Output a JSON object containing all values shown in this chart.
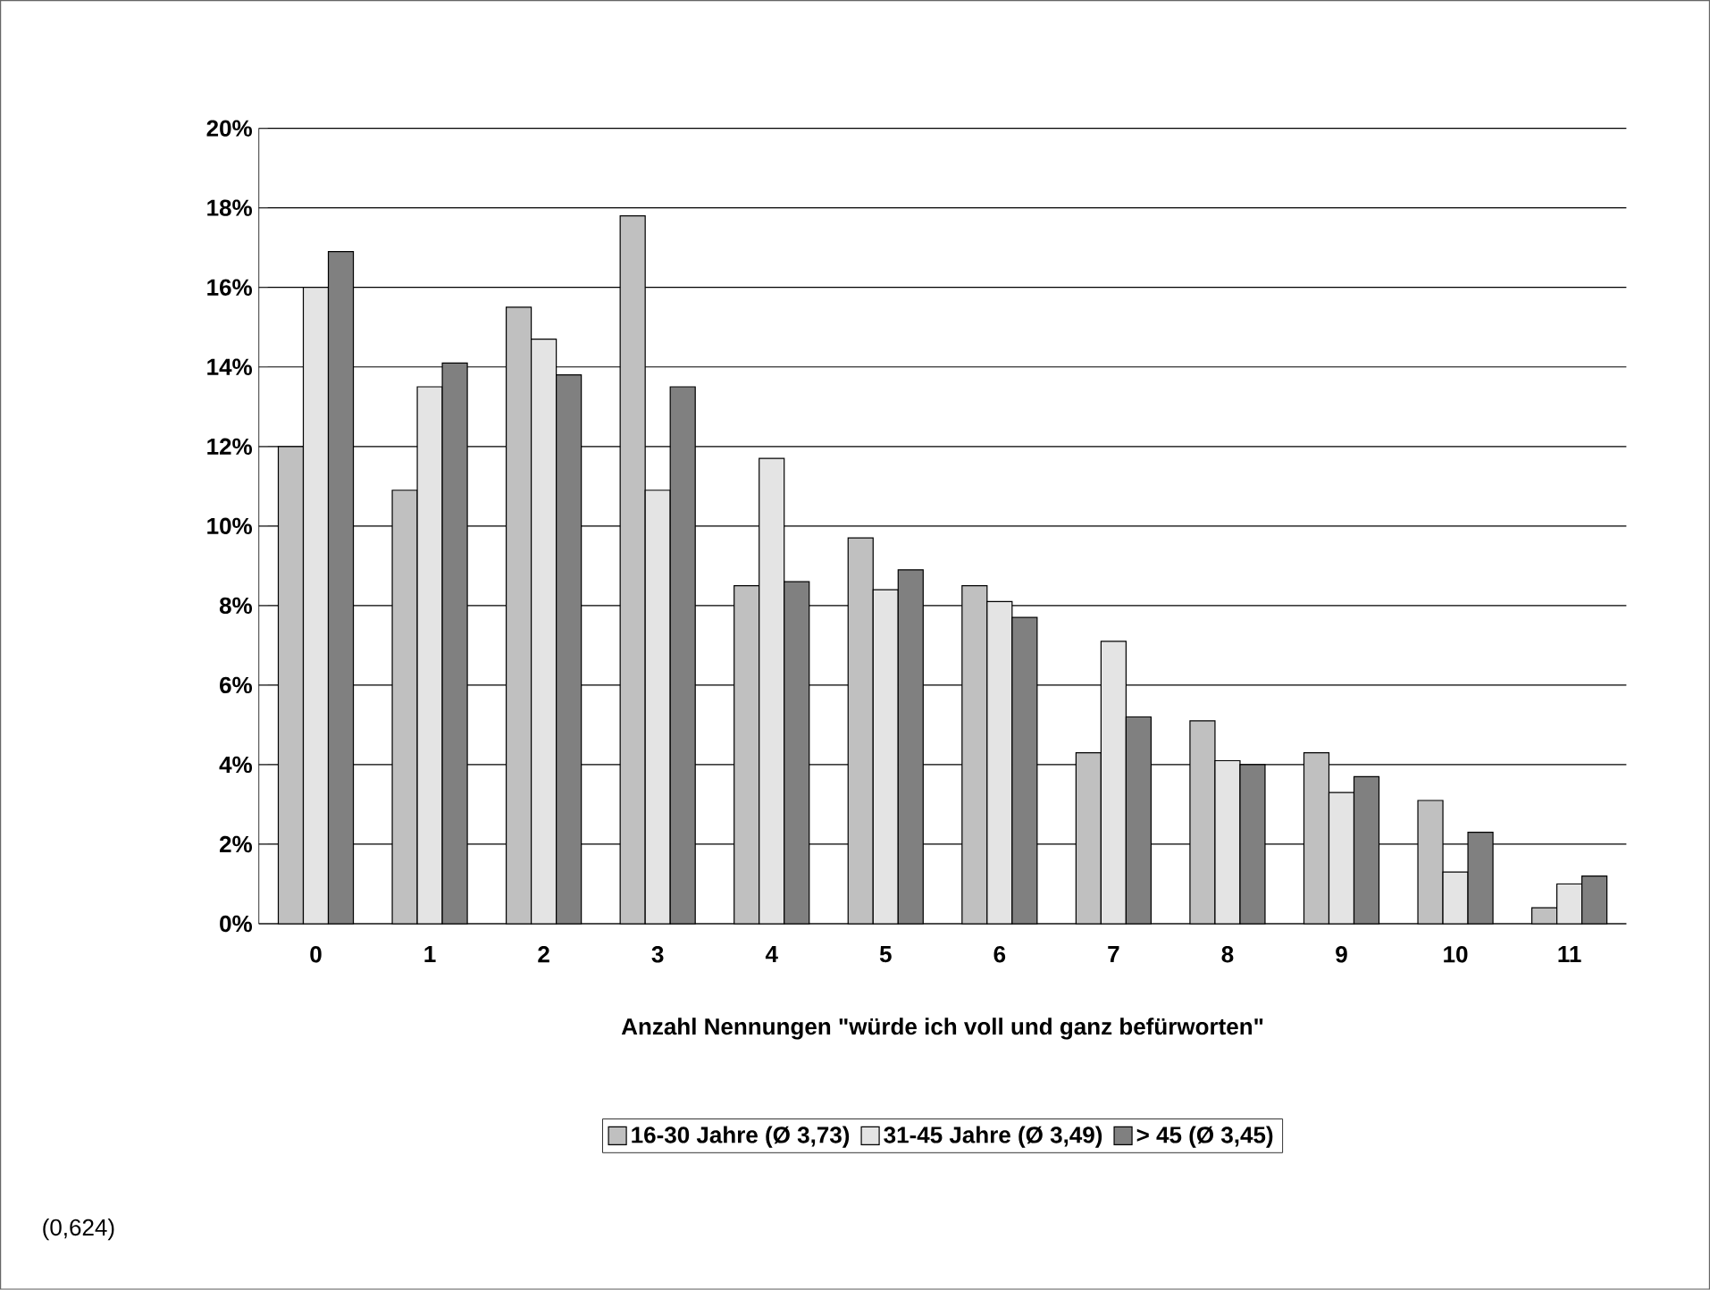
{
  "chart_data": {
    "type": "bar",
    "xlabel": "Anzahl Nennungen \"würde ich voll und ganz befürworten\"",
    "categories": [
      "0",
      "1",
      "2",
      "3",
      "4",
      "5",
      "6",
      "7",
      "8",
      "9",
      "10",
      "11"
    ],
    "series": [
      {
        "name": "16-30 Jahre (Ø 3,73)",
        "color": "#c0c0c0",
        "values": [
          12.0,
          10.9,
          15.5,
          17.8,
          8.5,
          9.7,
          8.5,
          4.3,
          5.1,
          4.3,
          3.1,
          0.4
        ]
      },
      {
        "name": "31-45 Jahre (Ø 3,49)",
        "color": "#e4e4e4",
        "values": [
          16.0,
          13.5,
          14.7,
          10.9,
          11.7,
          8.4,
          8.1,
          7.1,
          4.1,
          3.3,
          1.3,
          1.0
        ]
      },
      {
        "name": "> 45 (Ø 3,45)",
        "color": "#808080",
        "values": [
          16.9,
          14.1,
          13.8,
          13.5,
          8.6,
          8.9,
          7.7,
          5.2,
          4.0,
          3.7,
          2.3,
          1.2
        ]
      }
    ],
    "ylim": [
      0,
      20
    ],
    "yticks": [
      {
        "value": 0,
        "label": "0%"
      },
      {
        "value": 2,
        "label": "2%"
      },
      {
        "value": 4,
        "label": "4%"
      },
      {
        "value": 6,
        "label": "6%"
      },
      {
        "value": 8,
        "label": "8%"
      },
      {
        "value": 10,
        "label": "10%"
      },
      {
        "value": 12,
        "label": "12%"
      },
      {
        "value": 14,
        "label": "14%"
      },
      {
        "value": 16,
        "label": "16%"
      },
      {
        "value": 18,
        "label": "18%"
      },
      {
        "value": 20,
        "label": "20%"
      }
    ],
    "grid": "y",
    "legend": "bottom",
    "annotations": [
      "(0,624)"
    ]
  }
}
